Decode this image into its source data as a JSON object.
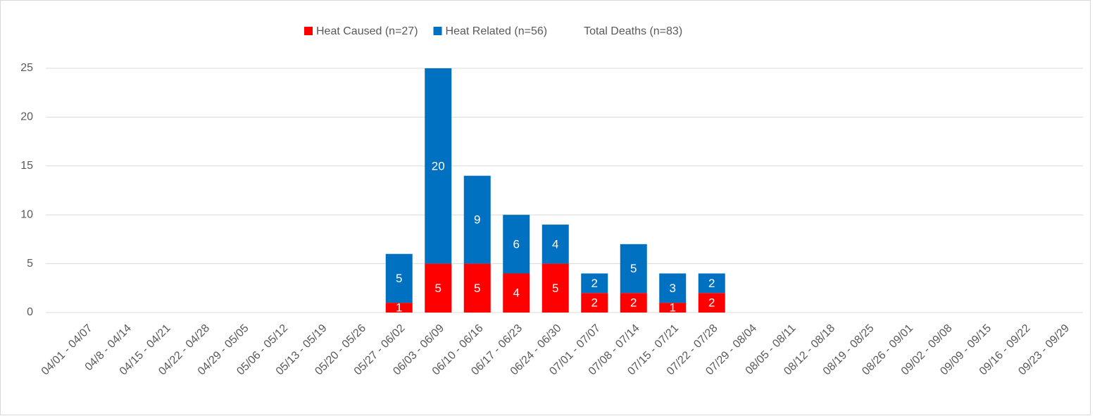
{
  "chart_data": {
    "type": "bar",
    "stacked": true,
    "categories": [
      "04/01 - 04/07",
      "04/8 - 04/14",
      "04/15 - 04/21",
      "04/22 - 04/28",
      "04/29 - 05/05",
      "05/06 - 05/12",
      "05/13 - 05/19",
      "05/20 - 05/26",
      "05/27 - 06/02",
      "06/03 - 06/09",
      "06/10 - 06/16",
      "06/17 - 06/23",
      "06/24 - 06/30",
      "07/01 - 07/07",
      "07/08 - 07/14",
      "07/15 - 07/21",
      "07/22 - 07/28",
      "07/29 - 08/04",
      "08/05 - 08/11",
      "08/12 - 08/18",
      "08/19 - 08/25",
      "08/26 - 09/01",
      "09/02 - 09/08",
      "09/09 - 09/15",
      "09/16 - 09/22",
      "09/23 - 09/29"
    ],
    "series": [
      {
        "name": "Heat Caused (n=27)",
        "color": "#ff0000",
        "values": [
          null,
          null,
          null,
          null,
          null,
          null,
          null,
          null,
          1,
          5,
          5,
          4,
          5,
          2,
          2,
          1,
          2,
          null,
          null,
          null,
          null,
          null,
          null,
          null,
          null,
          null
        ]
      },
      {
        "name": "Heat Related (n=56)",
        "color": "#0070c0",
        "values": [
          null,
          null,
          null,
          null,
          null,
          null,
          null,
          null,
          5,
          20,
          9,
          6,
          4,
          2,
          5,
          3,
          2,
          null,
          null,
          null,
          null,
          null,
          null,
          null,
          null,
          null
        ]
      }
    ],
    "legend_extra": "Total Deaths (n=83)",
    "ylim": [
      0,
      25
    ],
    "yticks": [
      0,
      5,
      10,
      15,
      20,
      25
    ],
    "grid": true,
    "legend": "top"
  }
}
